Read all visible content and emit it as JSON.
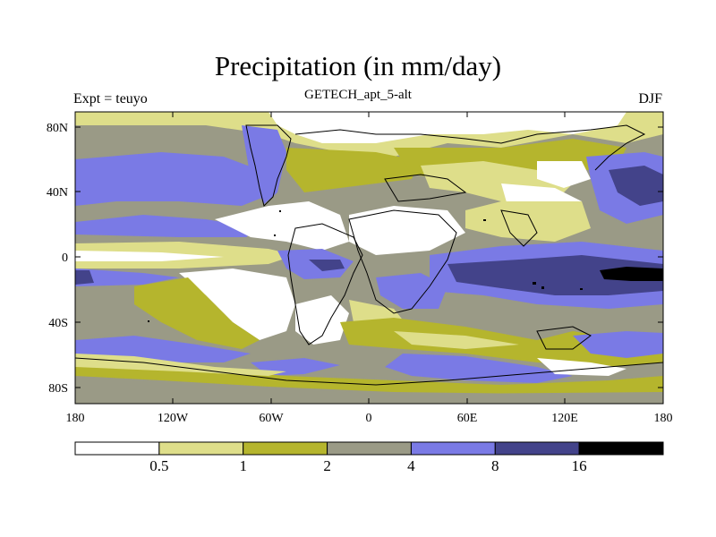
{
  "title": "Precipitation (in mm/day)",
  "subtitle": "GETECH_apt_5-alt",
  "left_label": "Expt = teuyo",
  "right_label": "DJF",
  "lat_ticks": [
    "80N",
    "40N",
    "0",
    "40S",
    "80S"
  ],
  "lon_ticks": [
    "180",
    "120W",
    "60W",
    "0",
    "60E",
    "120E",
    "180"
  ],
  "legend": {
    "colors": [
      "#ffffff",
      "#dede8a",
      "#b5b52d",
      "#9a9a86",
      "#7a7ae5",
      "#43438a",
      "#000000"
    ],
    "labels": [
      "0.5",
      "1",
      "2",
      "4",
      "8",
      "16"
    ]
  },
  "colors": {
    "lt0_5": "#ffffff",
    "c0_5_1": "#dede8a",
    "c1_2": "#b5b52d",
    "c2_4": "#9a9a86",
    "c4_8": "#7a7ae5",
    "c8_16": "#43438a",
    "gt16": "#000000"
  }
}
